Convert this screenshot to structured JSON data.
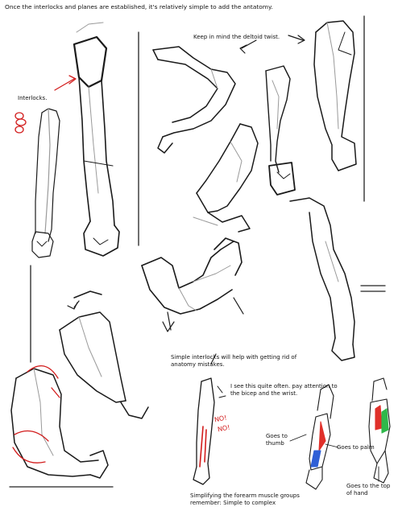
{
  "header": "Once the interlocks and planes are established, it's relatively simple to add the antatomy.",
  "labels": {
    "interlocks": "Interlocks.",
    "deltoid_twist": "Keep in mind the deltoid twist.",
    "simple_interlocks": "Simple interlocks will help with getting rid of anatomy mistakes.",
    "bicep_wrist_note": "I see this quite often. pay attention to the bicep and the wrist.",
    "no_marks": [
      "NO!",
      "NO!"
    ],
    "goes_to_thumb": "Goes to thumb",
    "goes_to_palm": "Goes to palm",
    "goes_to_top_of_hand": "Goes to the top of hand",
    "simplifying_caption": "Simplifying the forearm muscle groups remember: Simple to complex"
  },
  "colors": {
    "ink": "#1a1a1a",
    "sketch_grey": "#9a9a9a",
    "red_annotation": "#d21c1c",
    "muscle_red": "#e0302a",
    "muscle_blue": "#2f5fd6",
    "muscle_green": "#2fb84a"
  }
}
